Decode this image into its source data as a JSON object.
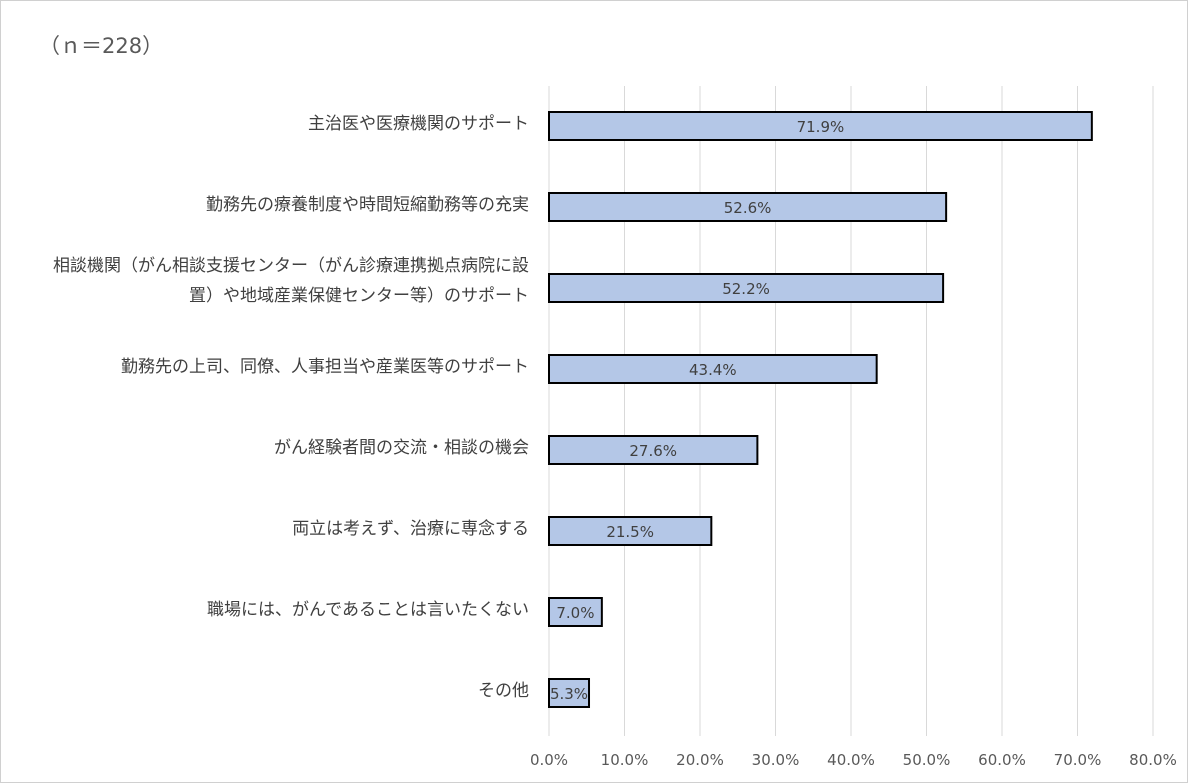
{
  "sample_note": "（ｎ＝228）",
  "chart_data": {
    "type": "bar",
    "orientation": "horizontal",
    "categories": [
      [
        "主治医や医療機関のサポート"
      ],
      [
        "勤務先の療養制度や時間短縮勤務等の充実"
      ],
      [
        "相談機関（がん相談支援センター（がん診療連携拠点病院に設",
        "置）や地域産業保健センター等）のサポート"
      ],
      [
        "勤務先の上司、同僚、人事担当や産業医等のサポート"
      ],
      [
        "がん経験者間の交流・相談の機会"
      ],
      [
        "両立は考えず、治療に専念する"
      ],
      [
        "職場には、がんであることは言いたくない"
      ],
      [
        "その他"
      ]
    ],
    "values": [
      71.9,
      52.6,
      52.2,
      43.4,
      27.6,
      21.5,
      7.0,
      5.3
    ],
    "value_labels": [
      "71.9%",
      "52.6%",
      "52.2%",
      "43.4%",
      "27.6%",
      "21.5%",
      "7.0%",
      "5.3%"
    ],
    "xlim": [
      0,
      80
    ],
    "ticks": [
      0,
      10,
      20,
      30,
      40,
      50,
      60,
      70,
      80
    ],
    "tick_labels": [
      "0.0%",
      "10.0%",
      "20.0%",
      "30.0%",
      "40.0%",
      "50.0%",
      "60.0%",
      "70.0%",
      "80.0%"
    ],
    "grid": "vertical",
    "legend": "none",
    "bar_color": "#b4c7e7",
    "bar_border_color": "#000000",
    "grid_color": "#d9d9d9"
  }
}
